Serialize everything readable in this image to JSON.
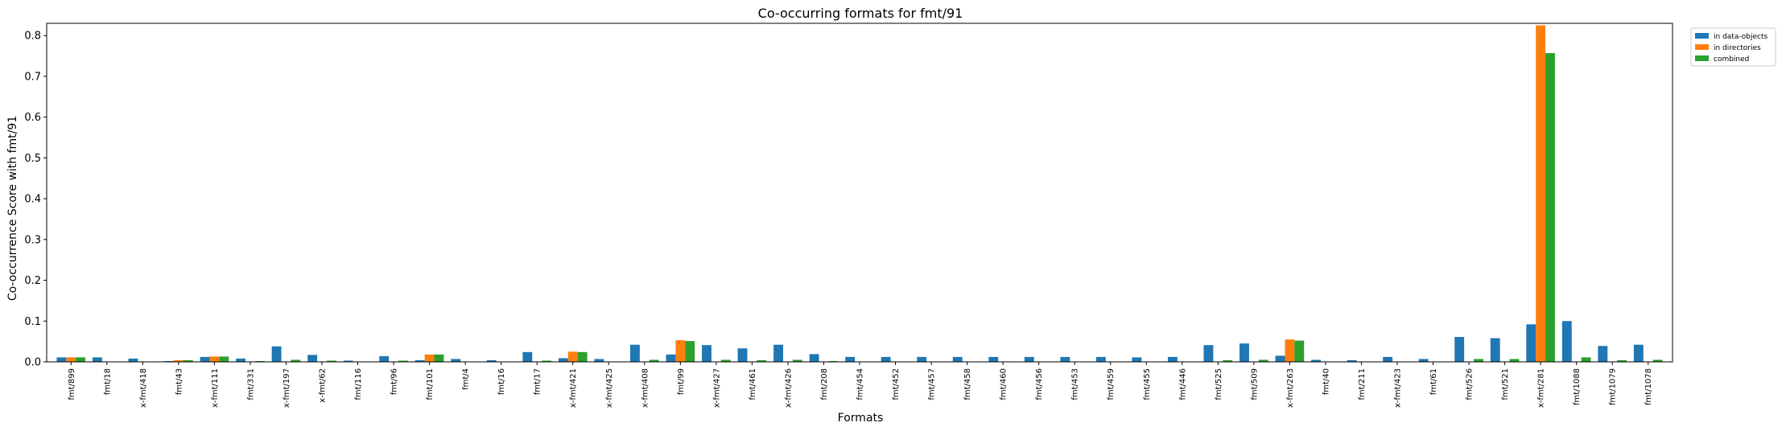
{
  "chart_data": {
    "type": "bar",
    "title": "Co-occurring formats for fmt/91",
    "xlabel": "Formats",
    "ylabel": "Co-occurrence Score with fmt/91",
    "ylim": [
      0,
      0.83
    ],
    "yticks": [
      "0.0",
      "0.1",
      "0.2",
      "0.3",
      "0.4",
      "0.5",
      "0.6",
      "0.7",
      "0.8"
    ],
    "grid": false,
    "legend_position": "top-right (outside plot)",
    "categories": [
      "fmt/899",
      "fmt/18",
      "x-fmt/418",
      "fmt/43",
      "x-fmt/111",
      "fmt/331",
      "x-fmt/197",
      "x-fmt/62",
      "fmt/116",
      "fmt/96",
      "fmt/101",
      "fmt/4",
      "fmt/16",
      "fmt/17",
      "x-fmt/421",
      "x-fmt/425",
      "x-fmt/408",
      "fmt/99",
      "x-fmt/427",
      "fmt/461",
      "x-fmt/426",
      "fmt/208",
      "fmt/454",
      "fmt/452",
      "fmt/457",
      "fmt/458",
      "fmt/460",
      "fmt/456",
      "fmt/453",
      "fmt/459",
      "fmt/455",
      "fmt/446",
      "fmt/525",
      "fmt/509",
      "x-fmt/263",
      "fmt/40",
      "fmt/211",
      "x-fmt/423",
      "fmt/61",
      "fmt/526",
      "fmt/521",
      "x-fmt/281",
      "fmt/1088",
      "fmt/1079",
      "fmt/1078"
    ],
    "series": [
      {
        "name": "in data-objects",
        "color": "#1f77b4",
        "values": [
          0.011,
          0.011,
          0.008,
          0.002,
          0.012,
          0.008,
          0.038,
          0.017,
          0.003,
          0.014,
          0.004,
          0.007,
          0.004,
          0.024,
          0.009,
          0.007,
          0.042,
          0.018,
          0.041,
          0.033,
          0.042,
          0.019,
          0.012,
          0.012,
          0.012,
          0.012,
          0.012,
          0.012,
          0.012,
          0.012,
          0.011,
          0.012,
          0.041,
          0.045,
          0.015,
          0.005,
          0.004,
          0.012,
          0.007,
          0.061,
          0.058,
          0.092,
          0.1,
          0.039,
          0.042
        ]
      },
      {
        "name": "in directories",
        "color": "#ff7f0e",
        "values": [
          0.011,
          0,
          0,
          0.004,
          0.013,
          0,
          0,
          0,
          0,
          0,
          0.018,
          0,
          0,
          0,
          0.025,
          0,
          0,
          0.053,
          0,
          0,
          0,
          0,
          0,
          0,
          0,
          0,
          0,
          0,
          0,
          0,
          0,
          0,
          0,
          0,
          0.055,
          0,
          0,
          0,
          0,
          0,
          0,
          0.825,
          0,
          0,
          0
        ]
      },
      {
        "name": "combined",
        "color": "#2ca02c",
        "values": [
          0.011,
          0.001,
          0.001,
          0.004,
          0.013,
          0.002,
          0.005,
          0.003,
          0.001,
          0.003,
          0.018,
          0.001,
          0.001,
          0.003,
          0.024,
          0.001,
          0.005,
          0.051,
          0.005,
          0.004,
          0.005,
          0.002,
          0.001,
          0.001,
          0.001,
          0.001,
          0.001,
          0.001,
          0.001,
          0.001,
          0.001,
          0.001,
          0.004,
          0.005,
          0.052,
          0.001,
          0.001,
          0.001,
          0.001,
          0.007,
          0.007,
          0.757,
          0.011,
          0.004,
          0.005
        ]
      }
    ]
  }
}
